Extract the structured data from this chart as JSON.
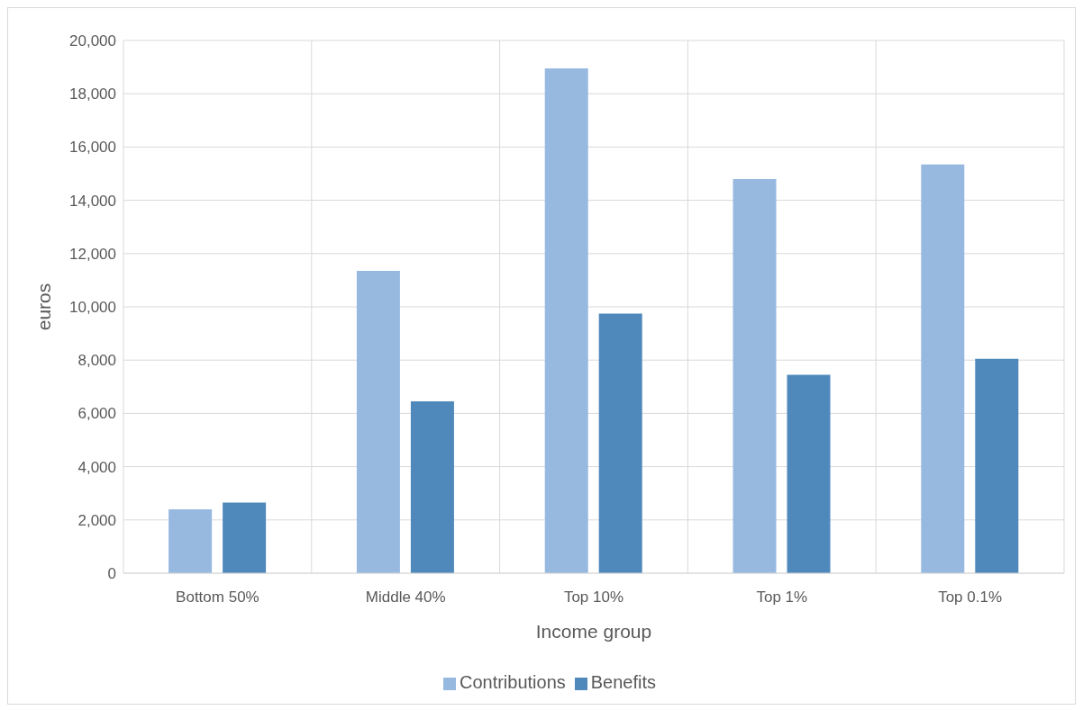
{
  "chart_data": {
    "type": "bar",
    "xlabel": "Income group",
    "ylabel": "euros",
    "categories": [
      "Bottom 50%",
      "Middle 40%",
      "Top 10%",
      "Top 1%",
      "Top 0.1%"
    ],
    "series": [
      {
        "name": "Contributions",
        "color": "#97b9e0",
        "values": [
          2400,
          11350,
          18950,
          14800,
          15350
        ]
      },
      {
        "name": "Benefits",
        "color": "#4f89bc",
        "values": [
          2650,
          6450,
          9750,
          7450,
          8050
        ]
      }
    ],
    "ylim": [
      0,
      20000
    ],
    "yticks": [
      {
        "value": 0,
        "label": "0"
      },
      {
        "value": 2000,
        "label": "2,000"
      },
      {
        "value": 4000,
        "label": "4,000"
      },
      {
        "value": 6000,
        "label": "6,000"
      },
      {
        "value": 8000,
        "label": "8,000"
      },
      {
        "value": 10000,
        "label": "10,000"
      },
      {
        "value": 12000,
        "label": "12,000"
      },
      {
        "value": 14000,
        "label": "14,000"
      },
      {
        "value": 16000,
        "label": "16,000"
      },
      {
        "value": 18000,
        "label": "18,000"
      },
      {
        "value": 20000,
        "label": "20,000"
      }
    ],
    "grid": true,
    "legend": "bottom"
  }
}
